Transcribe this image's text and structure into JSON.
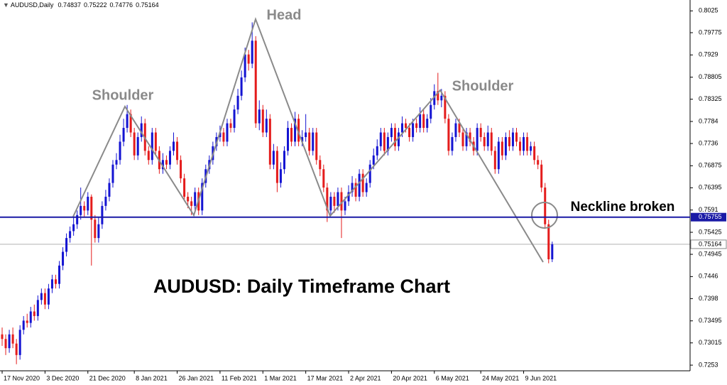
{
  "chart_data": {
    "type": "candlestick",
    "symbol": "AUDUSD,Daily",
    "annotations": {
      "head": "Head",
      "left_shoulder": "Shoulder",
      "right_shoulder": "Shoulder",
      "neckline_note": "Neckline broken",
      "caption": "AUDUSD: Daily Timeframe Chart"
    },
    "up_color": "#1414d2",
    "down_color": "#e41c1c",
    "ylim": [
      0.72407,
      0.80487
    ],
    "yticks": [
      0.8025,
      0.79775,
      0.7929,
      0.78805,
      0.78325,
      0.7784,
      0.7736,
      0.76875,
      0.76395,
      0.7591,
      0.75425,
      0.74945,
      0.7446,
      0.7398,
      0.73495,
      0.73015,
      0.7253
    ],
    "xlim": [
      -0.6,
      192.6
    ],
    "xticks": [
      {
        "value": 0,
        "label": "17 Nov 2020"
      },
      {
        "value": 12,
        "label": "3 Dec 2020"
      },
      {
        "value": 24,
        "label": "21 Dec 2020"
      },
      {
        "value": 37,
        "label": "8 Jan 2021"
      },
      {
        "value": 49,
        "label": "26 Jan 2021"
      },
      {
        "value": 61,
        "label": "11 Feb 2021"
      },
      {
        "value": 73,
        "label": "1 Mar 2021"
      },
      {
        "value": 85,
        "label": "17 Mar 2021"
      },
      {
        "value": 97,
        "label": "2 Apr 2021"
      },
      {
        "value": 109,
        "label": "20 Apr 2021"
      },
      {
        "value": 121,
        "label": "6 May 2021"
      },
      {
        "value": 134,
        "label": "24 May 2021"
      },
      {
        "value": 146,
        "label": "9 Jun 2021"
      }
    ],
    "neckline": {
      "value": 0.75755,
      "color": "#1a1aa6"
    },
    "open": [
      0.732,
      0.731,
      0.729,
      0.732,
      0.73,
      0.7275,
      0.733,
      0.735,
      0.7345,
      0.737,
      0.736,
      0.7395,
      0.741,
      0.7385,
      0.742,
      0.744,
      0.743,
      0.747,
      0.75,
      0.753,
      0.7545,
      0.756,
      0.758,
      0.76,
      0.759,
      0.762,
      0.757,
      0.753,
      0.756,
      0.76,
      0.762,
      0.765,
      0.769,
      0.77,
      0.774,
      0.777,
      0.78,
      0.776,
      0.771,
      0.775,
      0.778,
      0.772,
      0.77,
      0.776,
      0.772,
      0.768,
      0.77,
      0.769,
      0.772,
      0.774,
      0.77,
      0.766,
      0.762,
      0.761,
      0.76,
      0.763,
      0.759,
      0.765,
      0.768,
      0.77,
      0.773,
      0.775,
      0.776,
      0.774,
      0.778,
      0.777,
      0.781,
      0.784,
      0.788,
      0.793,
      0.791,
      0.796,
      0.778,
      0.781,
      0.776,
      0.779,
      0.769,
      0.772,
      0.765,
      0.768,
      0.772,
      0.777,
      0.774,
      0.779,
      0.774,
      0.775,
      0.776,
      0.772,
      0.776,
      0.77,
      0.768,
      0.764,
      0.759,
      0.762,
      0.76,
      0.763,
      0.759,
      0.761,
      0.763,
      0.765,
      0.762,
      0.767,
      0.763,
      0.765,
      0.769,
      0.771,
      0.773,
      0.776,
      0.772,
      0.775,
      0.777,
      0.773,
      0.776,
      0.778,
      0.777,
      0.775,
      0.778,
      0.777,
      0.78,
      0.777,
      0.779,
      0.782,
      0.785,
      0.783,
      0.784,
      0.779,
      0.772,
      0.775,
      0.778,
      0.776,
      0.773,
      0.776,
      0.774,
      0.772,
      0.777,
      0.775,
      0.773,
      0.776,
      0.772,
      0.768,
      0.774,
      0.771,
      0.775,
      0.773,
      0.776,
      0.774,
      0.772,
      0.775,
      0.772,
      0.773,
      0.77,
      0.769,
      0.764,
      0.756,
      0.74837
    ],
    "high": [
      0.7335,
      0.732,
      0.733,
      0.7335,
      0.731,
      0.734,
      0.736,
      0.7365,
      0.738,
      0.7385,
      0.7405,
      0.742,
      0.742,
      0.743,
      0.745,
      0.745,
      0.748,
      0.751,
      0.754,
      0.7555,
      0.7575,
      0.759,
      0.764,
      0.761,
      0.763,
      0.7625,
      0.758,
      0.7575,
      0.761,
      0.7635,
      0.766,
      0.77,
      0.7715,
      0.7755,
      0.779,
      0.782,
      0.781,
      0.777,
      0.776,
      0.7795,
      0.779,
      0.773,
      0.777,
      0.777,
      0.773,
      0.7715,
      0.771,
      0.773,
      0.776,
      0.775,
      0.771,
      0.767,
      0.763,
      0.762,
      0.764,
      0.764,
      0.766,
      0.769,
      0.771,
      0.774,
      0.776,
      0.7775,
      0.777,
      0.779,
      0.779,
      0.782,
      0.7855,
      0.7895,
      0.7945,
      0.794,
      0.8,
      0.797,
      0.783,
      0.782,
      0.781,
      0.78,
      0.7735,
      0.773,
      0.7695,
      0.773,
      0.7785,
      0.778,
      0.7805,
      0.78,
      0.7765,
      0.78,
      0.777,
      0.777,
      0.777,
      0.771,
      0.769,
      0.765,
      0.763,
      0.763,
      0.764,
      0.764,
      0.762,
      0.7645,
      0.7665,
      0.766,
      0.768,
      0.768,
      0.766,
      0.77,
      0.7725,
      0.7745,
      0.777,
      0.777,
      0.776,
      0.778,
      0.778,
      0.777,
      0.7795,
      0.779,
      0.778,
      0.779,
      0.779,
      0.7815,
      0.781,
      0.78,
      0.7835,
      0.7865,
      0.789,
      0.7855,
      0.785,
      0.78,
      0.776,
      0.779,
      0.779,
      0.777,
      0.777,
      0.777,
      0.775,
      0.778,
      0.778,
      0.776,
      0.7775,
      0.777,
      0.773,
      0.775,
      0.775,
      0.776,
      0.7765,
      0.777,
      0.777,
      0.775,
      0.776,
      0.776,
      0.774,
      0.774,
      0.771,
      0.77,
      0.765,
      0.757,
      0.75222
    ],
    "low": [
      0.7295,
      0.7275,
      0.728,
      0.729,
      0.7255,
      0.7265,
      0.732,
      0.7335,
      0.7335,
      0.735,
      0.735,
      0.7385,
      0.7375,
      0.7375,
      0.741,
      0.742,
      0.742,
      0.746,
      0.749,
      0.752,
      0.7535,
      0.755,
      0.757,
      0.7575,
      0.758,
      0.747,
      0.752,
      0.752,
      0.755,
      0.759,
      0.761,
      0.764,
      0.768,
      0.769,
      0.773,
      0.776,
      0.775,
      0.77,
      0.77,
      0.774,
      0.771,
      0.769,
      0.769,
      0.771,
      0.767,
      0.767,
      0.768,
      0.768,
      0.771,
      0.769,
      0.765,
      0.761,
      0.7595,
      0.758,
      0.759,
      0.758,
      0.758,
      0.764,
      0.767,
      0.769,
      0.772,
      0.774,
      0.773,
      0.773,
      0.776,
      0.776,
      0.78,
      0.783,
      0.787,
      0.7895,
      0.79,
      0.777,
      0.7765,
      0.775,
      0.775,
      0.768,
      0.768,
      0.763,
      0.764,
      0.767,
      0.771,
      0.773,
      0.773,
      0.773,
      0.773,
      0.774,
      0.771,
      0.771,
      0.769,
      0.7665,
      0.763,
      0.7565,
      0.758,
      0.7585,
      0.759,
      0.753,
      0.758,
      0.76,
      0.762,
      0.761,
      0.761,
      0.762,
      0.762,
      0.764,
      0.768,
      0.77,
      0.772,
      0.771,
      0.771,
      0.774,
      0.772,
      0.772,
      0.775,
      0.776,
      0.774,
      0.774,
      0.776,
      0.776,
      0.776,
      0.776,
      0.778,
      0.781,
      0.782,
      0.7815,
      0.778,
      0.771,
      0.771,
      0.774,
      0.775,
      0.772,
      0.772,
      0.773,
      0.771,
      0.771,
      0.774,
      0.772,
      0.772,
      0.771,
      0.767,
      0.767,
      0.77,
      0.77,
      0.772,
      0.772,
      0.773,
      0.771,
      0.771,
      0.771,
      0.771,
      0.769,
      0.768,
      0.763,
      0.755,
      0.7475,
      0.74776
    ],
    "close": [
      0.731,
      0.729,
      0.732,
      0.73,
      0.7275,
      0.733,
      0.735,
      0.7345,
      0.737,
      0.736,
      0.7395,
      0.741,
      0.7385,
      0.742,
      0.744,
      0.743,
      0.747,
      0.75,
      0.753,
      0.7545,
      0.756,
      0.758,
      0.76,
      0.759,
      0.762,
      0.757,
      0.753,
      0.756,
      0.76,
      0.762,
      0.765,
      0.769,
      0.77,
      0.774,
      0.777,
      0.78,
      0.776,
      0.771,
      0.775,
      0.778,
      0.772,
      0.77,
      0.776,
      0.772,
      0.768,
      0.77,
      0.769,
      0.772,
      0.774,
      0.77,
      0.766,
      0.762,
      0.761,
      0.76,
      0.763,
      0.759,
      0.765,
      0.768,
      0.77,
      0.773,
      0.775,
      0.776,
      0.774,
      0.778,
      0.777,
      0.781,
      0.784,
      0.788,
      0.793,
      0.791,
      0.796,
      0.778,
      0.781,
      0.776,
      0.779,
      0.769,
      0.772,
      0.765,
      0.768,
      0.772,
      0.777,
      0.774,
      0.779,
      0.774,
      0.775,
      0.776,
      0.772,
      0.776,
      0.77,
      0.768,
      0.764,
      0.759,
      0.762,
      0.76,
      0.763,
      0.759,
      0.761,
      0.763,
      0.765,
      0.762,
      0.767,
      0.763,
      0.765,
      0.769,
      0.771,
      0.773,
      0.776,
      0.772,
      0.775,
      0.777,
      0.773,
      0.776,
      0.778,
      0.777,
      0.775,
      0.778,
      0.777,
      0.78,
      0.777,
      0.779,
      0.782,
      0.785,
      0.783,
      0.784,
      0.779,
      0.772,
      0.775,
      0.778,
      0.776,
      0.773,
      0.776,
      0.774,
      0.772,
      0.777,
      0.775,
      0.773,
      0.776,
      0.772,
      0.768,
      0.774,
      0.771,
      0.775,
      0.773,
      0.776,
      0.774,
      0.772,
      0.775,
      0.772,
      0.773,
      0.77,
      0.769,
      0.764,
      0.756,
      0.74837,
      0.75164
    ]
  }
}
